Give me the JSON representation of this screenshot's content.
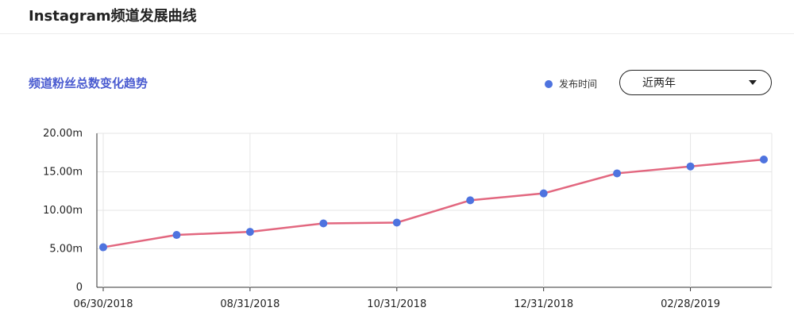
{
  "header": {
    "title": "Instagram频道发展曲线"
  },
  "chart_data": {
    "type": "line",
    "subtitle": "频道粉丝总数变化趋势",
    "x": [
      "2018-06-30",
      "2018-07-31",
      "2018-08-31",
      "2018-09-30",
      "2018-10-31",
      "2018-11-30",
      "2018-12-31",
      "2019-01-31",
      "2019-02-28",
      "2019-03-31"
    ],
    "series": [
      {
        "name": "发布时间",
        "values": [
          5.2,
          6.8,
          7.2,
          8.3,
          8.4,
          11.3,
          12.2,
          14.8,
          15.7,
          16.6
        ]
      }
    ],
    "y_tick_labels": [
      "0",
      "5.00m",
      "10.00m",
      "15.00m",
      "20.00m"
    ],
    "x_tick_labels": [
      "06/30/2018",
      "08/31/2018",
      "10/31/2018",
      "12/31/2018",
      "02/28/2019"
    ],
    "x_tick_indices": [
      0,
      2,
      4,
      6,
      8
    ],
    "ylim": [
      0,
      20
    ],
    "grid": true,
    "legend_position": "top-right",
    "line_color": "#e2677f",
    "marker_color": "#4e73df"
  },
  "controls": {
    "range_select_value": "近两年"
  }
}
